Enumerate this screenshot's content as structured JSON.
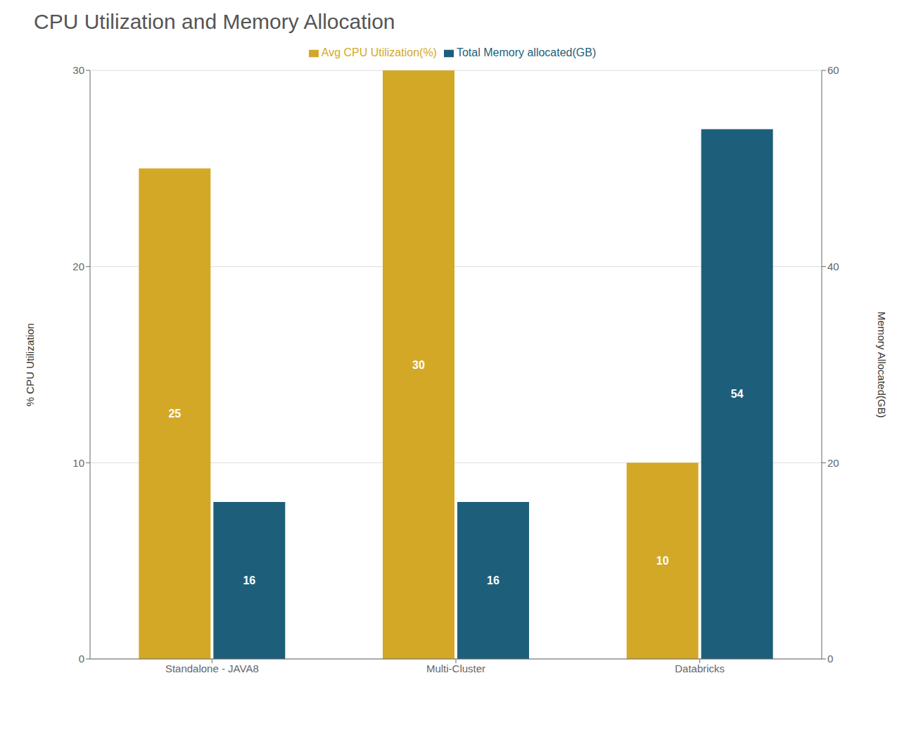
{
  "chart_data": {
    "type": "bar",
    "title": "CPU Utilization and Memory Allocation",
    "categories": [
      "Standalone - JAVA8",
      "Multi-Cluster",
      "Databricks"
    ],
    "series": [
      {
        "name": "Avg CPU Utilization(%)",
        "color": "#D4A827",
        "values": [
          25,
          30,
          10
        ],
        "axis": "y"
      },
      {
        "name": "Total Memory allocated(GB)",
        "color": "#1D5F7A",
        "values": [
          16,
          16,
          54
        ],
        "axis": "y2"
      }
    ],
    "ylabel": "% CPU Utilization",
    "y2label": "Memory Allocated(GB)",
    "ylim": [
      0,
      30
    ],
    "yticks": [
      0,
      10,
      20,
      30
    ],
    "y2lim": [
      0,
      60
    ],
    "y2ticks": [
      0,
      20,
      40,
      60
    ],
    "grid": true,
    "legend": "top",
    "data_labels": true
  }
}
